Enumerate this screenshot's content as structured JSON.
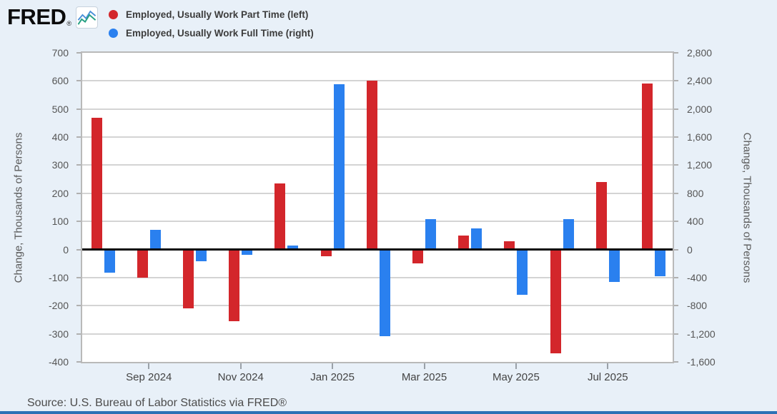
{
  "header": {
    "logo_text": "FRED",
    "registered_mark": "®",
    "legend": [
      {
        "label": "Employed, Usually Work Part Time (left)",
        "color": "#d3262b"
      },
      {
        "label": "Employed, Usually Work Full Time (right)",
        "color": "#2a80ef"
      }
    ]
  },
  "chart_data": {
    "type": "bar",
    "title": "",
    "grid": true,
    "legend_position": "top-left",
    "categories": [
      "Aug 2024",
      "Sep 2024",
      "Oct 2024",
      "Nov 2024",
      "Dec 2024",
      "Jan 2025",
      "Feb 2025",
      "Mar 2025",
      "Apr 2025",
      "May 2025",
      "Jun 2025",
      "Jul 2025",
      "Aug 2025"
    ],
    "series": [
      {
        "name": "Employed, Usually Work Part Time (left)",
        "axis": "left",
        "color": "#d3262b",
        "values": [
          470,
          -100,
          -210,
          -255,
          235,
          -25,
          600,
          -50,
          50,
          30,
          -370,
          240,
          590
        ]
      },
      {
        "name": "Employed, Usually Work Full Time (right)",
        "axis": "right",
        "color": "#2a80ef",
        "values": [
          -330,
          280,
          -170,
          -75,
          60,
          2350,
          -1230,
          430,
          305,
          -640,
          430,
          -465,
          -380
        ]
      }
    ],
    "left_axis": {
      "label": "Change, Thousands of Persons",
      "min": -400,
      "max": 700,
      "ticks": [
        "700",
        "600",
        "500",
        "400",
        "300",
        "200",
        "100",
        "0",
        "-100",
        "-200",
        "-300",
        "-400"
      ]
    },
    "right_axis": {
      "label": "Change, Thousands of Persons",
      "min": -1600,
      "max": 2800,
      "ticks": [
        "2,800",
        "2,400",
        "2,000",
        "1,600",
        "1,200",
        "800",
        "400",
        "0",
        "-400",
        "-800",
        "-1,200",
        "-1,600"
      ]
    },
    "x_tick_labels": [
      "Sep 2024",
      "Nov 2024",
      "Jan 2025",
      "Mar 2025",
      "May 2025",
      "Jul 2025"
    ]
  },
  "footer": {
    "source": "Source: U.S. Bureau of Labor Statistics via FRED®"
  }
}
